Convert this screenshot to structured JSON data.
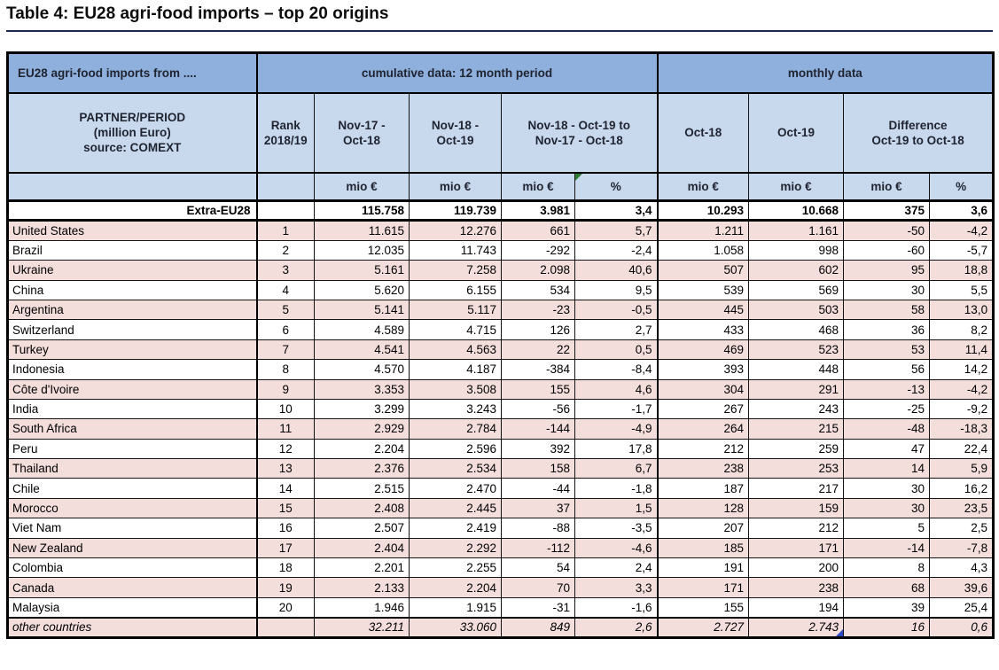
{
  "title": "Table 4: EU28 agri-food imports – top 20 origins",
  "table": {
    "corner_header": "EU28 agri-food imports from ....",
    "group_headers": {
      "cumulative": "cumulative data: 12 month period",
      "monthly": "monthly data"
    },
    "partner_header": "PARTNER/PERIOD\n(million Euro)\nsource: COMEXT",
    "col_headers": {
      "rank": "Rank\n2018/19",
      "cum_prev": "Nov-17 -\nOct-18",
      "cum_curr": "Nov-18 -\nOct-19",
      "cum_diff": "Nov-18 - Oct-19 to\nNov-17 - Oct-18",
      "mon_prev": "Oct-18",
      "mon_curr": "Oct-19",
      "mon_diff": "Difference\nOct-19 to Oct-18"
    },
    "unit_row": [
      "mio €",
      "mio €",
      "mio €",
      "%",
      "mio €",
      "mio €",
      "mio €",
      "%"
    ],
    "markers": {
      "cumulative_pct_unit_corner": "green-triangle",
      "other_countries_oct19_corner": "blue-triangle"
    },
    "rows": [
      {
        "label": "Extra-EU28",
        "rank": "",
        "values": [
          "115.758",
          "119.739",
          "3.981",
          "3,4",
          "10.293",
          "10.668",
          "375",
          "3,6"
        ],
        "variant": "total",
        "shade": "white"
      },
      {
        "label": "United States",
        "rank": "1",
        "values": [
          "11.615",
          "12.276",
          "661",
          "5,7",
          "1.211",
          "1.161",
          "-50",
          "-4,2"
        ],
        "variant": "normal",
        "shade": "pink"
      },
      {
        "label": "Brazil",
        "rank": "2",
        "values": [
          "12.035",
          "11.743",
          "-292",
          "-2,4",
          "1.058",
          "998",
          "-60",
          "-5,7"
        ],
        "variant": "normal",
        "shade": "white"
      },
      {
        "label": "Ukraine",
        "rank": "3",
        "values": [
          "5.161",
          "7.258",
          "2.098",
          "40,6",
          "507",
          "602",
          "95",
          "18,8"
        ],
        "variant": "normal",
        "shade": "pink"
      },
      {
        "label": "China",
        "rank": "4",
        "values": [
          "5.620",
          "6.155",
          "534",
          "9,5",
          "539",
          "569",
          "30",
          "5,5"
        ],
        "variant": "normal",
        "shade": "white"
      },
      {
        "label": "Argentina",
        "rank": "5",
        "values": [
          "5.141",
          "5.117",
          "-23",
          "-0,5",
          "445",
          "503",
          "58",
          "13,0"
        ],
        "variant": "normal",
        "shade": "pink"
      },
      {
        "label": "Switzerland",
        "rank": "6",
        "values": [
          "4.589",
          "4.715",
          "126",
          "2,7",
          "433",
          "468",
          "36",
          "8,2"
        ],
        "variant": "normal",
        "shade": "white"
      },
      {
        "label": "Turkey",
        "rank": "7",
        "values": [
          "4.541",
          "4.563",
          "22",
          "0,5",
          "469",
          "523",
          "53",
          "11,4"
        ],
        "variant": "normal",
        "shade": "pink"
      },
      {
        "label": "Indonesia",
        "rank": "8",
        "values": [
          "4.570",
          "4.187",
          "-384",
          "-8,4",
          "393",
          "448",
          "56",
          "14,2"
        ],
        "variant": "normal",
        "shade": "white"
      },
      {
        "label": "Côte d'Ivoire",
        "rank": "9",
        "values": [
          "3.353",
          "3.508",
          "155",
          "4,6",
          "304",
          "291",
          "-13",
          "-4,2"
        ],
        "variant": "normal",
        "shade": "pink"
      },
      {
        "label": "India",
        "rank": "10",
        "values": [
          "3.299",
          "3.243",
          "-56",
          "-1,7",
          "267",
          "243",
          "-25",
          "-9,2"
        ],
        "variant": "normal",
        "shade": "white"
      },
      {
        "label": "South Africa",
        "rank": "11",
        "values": [
          "2.929",
          "2.784",
          "-144",
          "-4,9",
          "264",
          "215",
          "-48",
          "-18,3"
        ],
        "variant": "normal",
        "shade": "pink"
      },
      {
        "label": "Peru",
        "rank": "12",
        "values": [
          "2.204",
          "2.596",
          "392",
          "17,8",
          "212",
          "259",
          "47",
          "22,4"
        ],
        "variant": "normal",
        "shade": "white"
      },
      {
        "label": "Thailand",
        "rank": "13",
        "values": [
          "2.376",
          "2.534",
          "158",
          "6,7",
          "238",
          "253",
          "14",
          "5,9"
        ],
        "variant": "normal",
        "shade": "pink"
      },
      {
        "label": "Chile",
        "rank": "14",
        "values": [
          "2.515",
          "2.470",
          "-44",
          "-1,8",
          "187",
          "217",
          "30",
          "16,2"
        ],
        "variant": "normal",
        "shade": "white"
      },
      {
        "label": "Morocco",
        "rank": "15",
        "values": [
          "2.408",
          "2.445",
          "37",
          "1,5",
          "128",
          "159",
          "30",
          "23,5"
        ],
        "variant": "normal",
        "shade": "pink"
      },
      {
        "label": "Viet Nam",
        "rank": "16",
        "values": [
          "2.507",
          "2.419",
          "-88",
          "-3,5",
          "207",
          "212",
          "5",
          "2,5"
        ],
        "variant": "normal",
        "shade": "white"
      },
      {
        "label": "New Zealand",
        "rank": "17",
        "values": [
          "2.404",
          "2.292",
          "-112",
          "-4,6",
          "185",
          "171",
          "-14",
          "-7,8"
        ],
        "variant": "normal",
        "shade": "pink"
      },
      {
        "label": "Colombia",
        "rank": "18",
        "values": [
          "2.201",
          "2.255",
          "54",
          "2,4",
          "191",
          "200",
          "8",
          "4,3"
        ],
        "variant": "normal",
        "shade": "white"
      },
      {
        "label": "Canada",
        "rank": "19",
        "values": [
          "2.133",
          "2.204",
          "70",
          "3,3",
          "171",
          "238",
          "68",
          "39,6"
        ],
        "variant": "normal",
        "shade": "pink"
      },
      {
        "label": "Malaysia",
        "rank": "20",
        "values": [
          "1.946",
          "1.915",
          "-31",
          "-1,6",
          "155",
          "194",
          "39",
          "25,4"
        ],
        "variant": "normal",
        "shade": "white"
      },
      {
        "label": "other countries",
        "rank": "",
        "values": [
          "32.211",
          "33.060",
          "849",
          "2,6",
          "2.727",
          "2.743",
          "16",
          "0,6"
        ],
        "variant": "others",
        "shade": "pink"
      }
    ]
  },
  "colors": {
    "group_header_bg": "#8fafdc",
    "sub_header_bg": "#c8d9ee",
    "pink_row_bg": "#f3dedc",
    "header_text": "#1f2430",
    "body_text": "#000000",
    "border": "#000000",
    "title_rule": "#1a2a49",
    "green_marker": "#2f7d32",
    "blue_marker": "#2b47c4"
  }
}
